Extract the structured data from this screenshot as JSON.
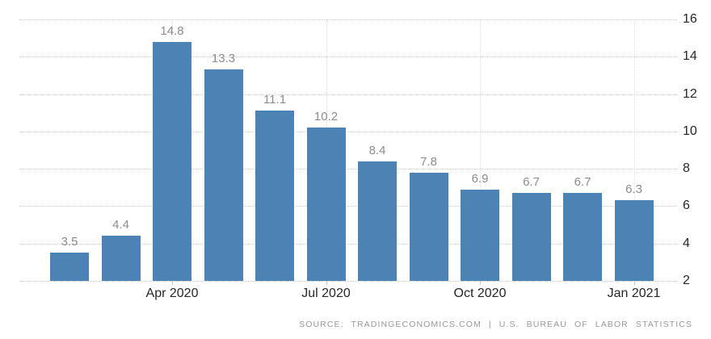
{
  "chart_data": {
    "type": "bar",
    "title": "",
    "xlabel": "",
    "ylabel": "",
    "values": [
      3.5,
      4.4,
      14.8,
      13.3,
      11.1,
      10.2,
      8.4,
      7.8,
      6.9,
      6.7,
      6.7,
      6.3
    ],
    "bar_labels": [
      "3.5",
      "4.4",
      "14.8",
      "13.3",
      "11.1",
      "10.2",
      "8.4",
      "7.8",
      "6.9",
      "6.7",
      "6.7",
      "6.3"
    ],
    "x_tick_labels": [
      {
        "label": "Apr 2020",
        "bar_index": 2
      },
      {
        "label": "Jul 2020",
        "bar_index": 5
      },
      {
        "label": "Oct 2020",
        "bar_index": 8
      },
      {
        "label": "Jan 2021",
        "bar_index": 11
      }
    ],
    "y_ticks": [
      2,
      4,
      6,
      8,
      10,
      12,
      14,
      16
    ],
    "ylim": [
      2,
      16
    ],
    "y_axis_side": "right",
    "grid": "dotted horizontal lines at every y tick, dotted vertical lines at labeled months",
    "legend": "none",
    "colors": {
      "bar": "#4a83b4",
      "value_label": "#8c8c8c",
      "axis_label": "#26262b",
      "gridline": "#cccccc",
      "v_gridline": "#dddddd",
      "tick": "#c5c5c5",
      "source_text": "#999999",
      "background": "#ffffff"
    }
  },
  "source": {
    "text": "SOURCE: TRADINGECONOMICS.COM | U.S. BUREAU OF LABOR STATISTICS"
  }
}
